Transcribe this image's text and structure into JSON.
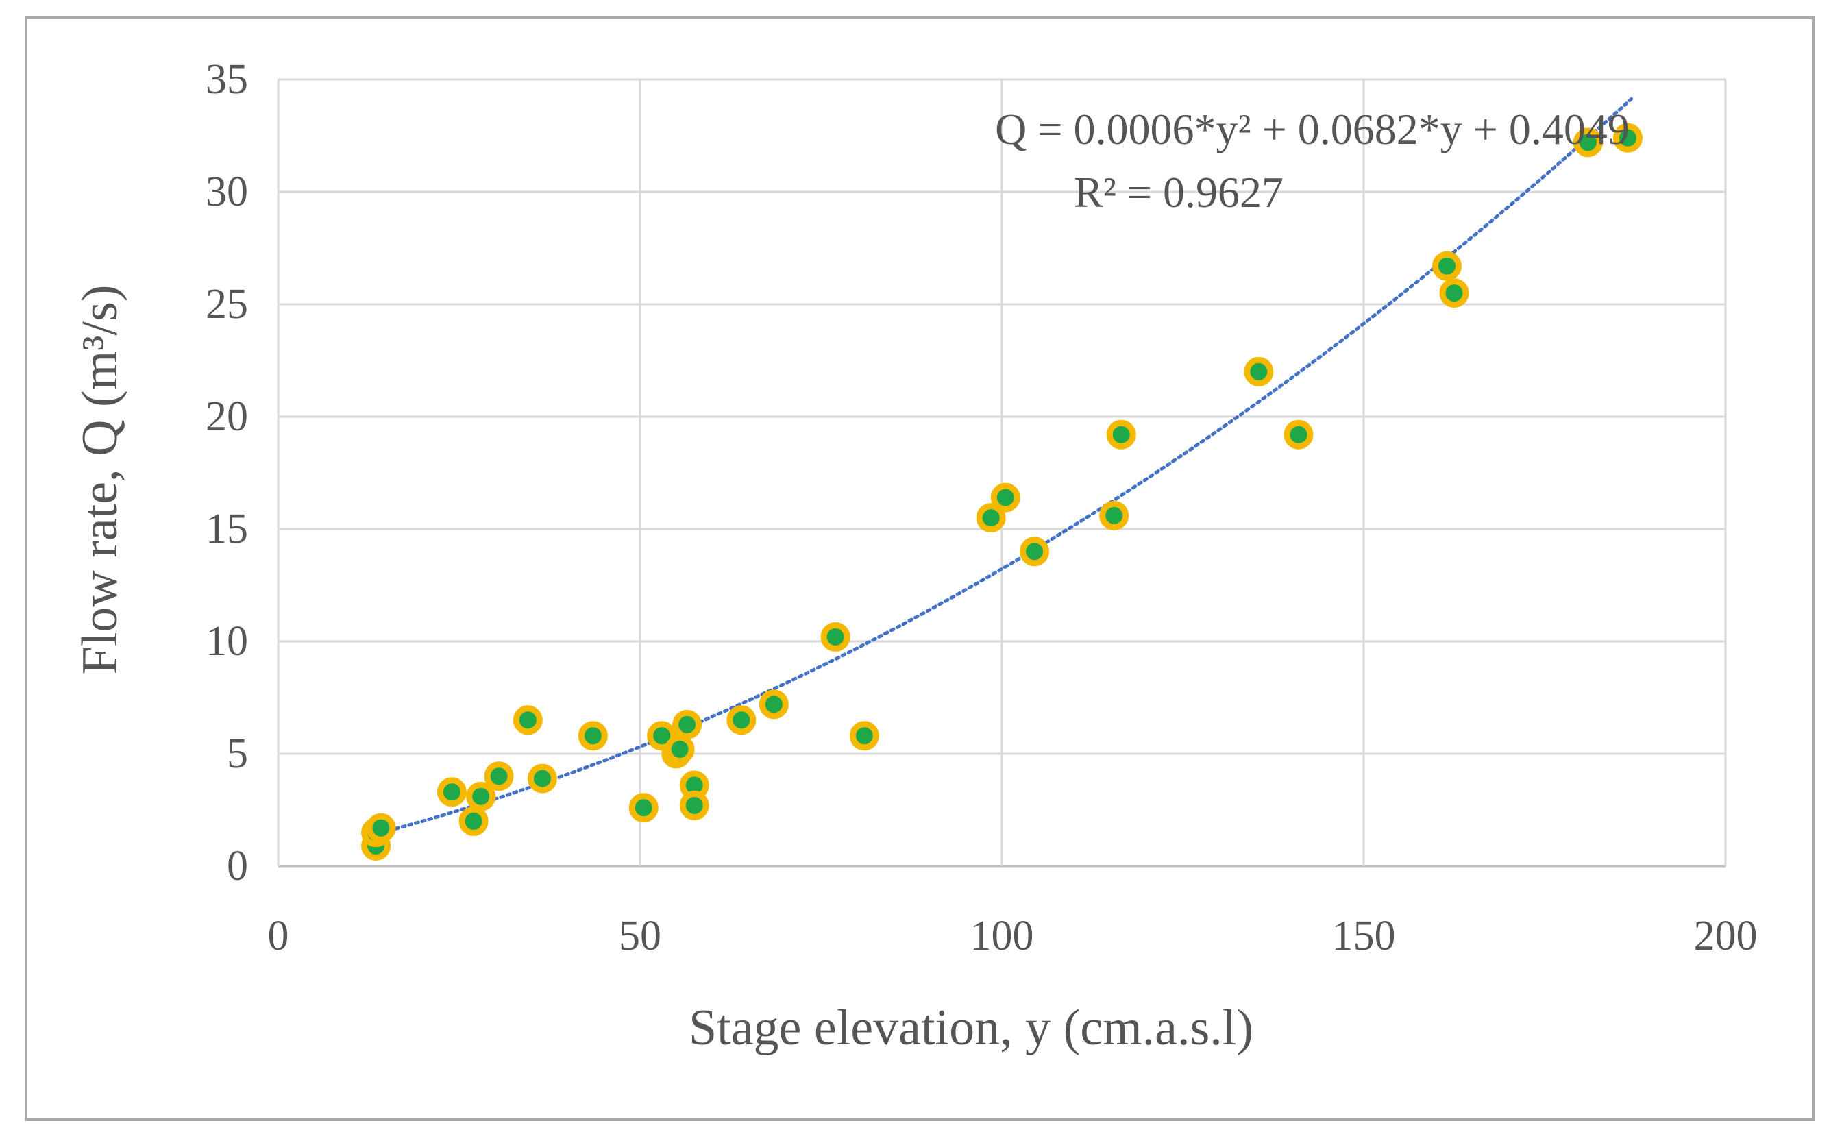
{
  "chart_data": {
    "type": "scatter",
    "xlabel": "Stage elevation, y (cm.a.s.l)",
    "ylabel": "Flow rate, Q  (m³/s)",
    "xlim": [
      0,
      200
    ],
    "ylim": [
      0,
      35
    ],
    "xticks": [
      "0",
      "50",
      "100",
      "150",
      "200"
    ],
    "yticks": [
      "0",
      "5",
      "10",
      "15",
      "20",
      "25",
      "30",
      "35"
    ],
    "grid": true,
    "annotation": {
      "equation": "Q = 0.0006*y² + 0.0682*y + 0.4049",
      "r2": "R² = 0.9627"
    },
    "trendline": {
      "type": "polynomial",
      "order": 2,
      "a": 0.0006,
      "b": 0.0682,
      "c": 0.4049,
      "x_range": [
        13.5,
        187
      ],
      "color": "#4472c4"
    },
    "marker": {
      "fill": "#1ea84a",
      "edge": "#f5b800"
    },
    "points": [
      [
        13.5,
        0.9
      ],
      [
        13.5,
        1.5
      ],
      [
        14.2,
        1.7
      ],
      [
        24,
        3.3
      ],
      [
        27,
        2.0
      ],
      [
        28,
        3.1
      ],
      [
        30.5,
        4.0
      ],
      [
        34.5,
        6.5
      ],
      [
        36.5,
        3.9
      ],
      [
        43.5,
        5.8
      ],
      [
        50.5,
        2.6
      ],
      [
        53,
        5.8
      ],
      [
        55,
        5.0
      ],
      [
        55.5,
        5.2
      ],
      [
        56.5,
        6.3
      ],
      [
        57.5,
        3.6
      ],
      [
        57.5,
        2.7
      ],
      [
        64,
        6.5
      ],
      [
        68.5,
        7.2
      ],
      [
        77,
        10.2
      ],
      [
        81,
        5.8
      ],
      [
        98.5,
        15.5
      ],
      [
        100.5,
        16.4
      ],
      [
        104.5,
        14.0
      ],
      [
        115.5,
        15.6
      ],
      [
        116.5,
        19.2
      ],
      [
        135.5,
        22.0
      ],
      [
        141,
        19.2
      ],
      [
        161.5,
        26.7
      ],
      [
        162.5,
        25.5
      ],
      [
        181,
        32.2
      ],
      [
        186.5,
        32.4
      ]
    ]
  }
}
